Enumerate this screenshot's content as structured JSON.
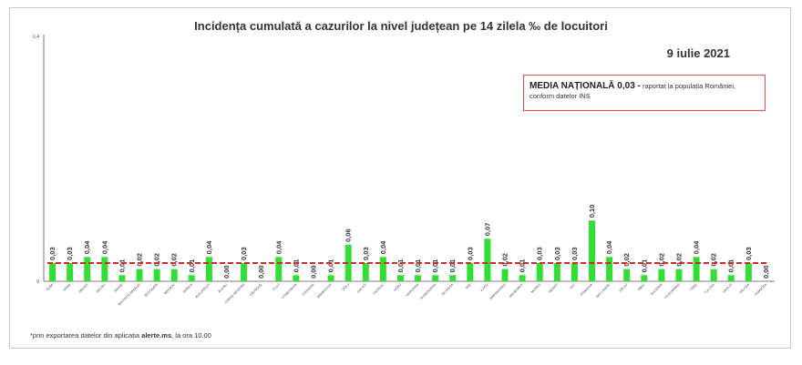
{
  "title": "Incidența cumulată a cazurilor la nivel județean pe 14 zilela ‰ de locuitori",
  "date": "9 iulie 2021",
  "media": {
    "bold": "MEDIA NAȚIONALĂ 0,03 -",
    "line1": " raportat la populația României,",
    "line2": "conform datelor INS"
  },
  "footnote": {
    "prefix": "*prin exportarea datelor din aplicația ",
    "app": "alerte.ms",
    "suffix": ", la ora 10.00"
  },
  "colors": {
    "bar": "#33dd33",
    "average_line": "#d62828",
    "axis": "#555555"
  },
  "chart_data": {
    "type": "bar",
    "title": "Incidența cumulată a cazurilor la nivel județean pe 14 zilela ‰ de locuitori",
    "ylim": [
      0,
      0.4
    ],
    "y_ticks": [
      "0,4",
      "0"
    ],
    "grid": false,
    "reference_line": {
      "value": 0.03
    },
    "categories": [
      "ALBA",
      "ARAD",
      "ARGEȘ",
      "BACĂU",
      "BIHOR",
      "BISTRIȚA-NĂSĂUD",
      "BOTOȘANI",
      "BRAȘOV",
      "BRĂILA",
      "BUCUREȘTI",
      "BUZĂU",
      "CARAȘ-SEVERIN",
      "CĂLĂRAȘI",
      "CLUJ",
      "CONSTANȚA",
      "COVASNA",
      "DÂMBOVIȚA",
      "DOLJ",
      "GALAȚI",
      "GIURGIU",
      "GORJ",
      "HARGHITA",
      "HUNEDOARA",
      "IALOMIȚA",
      "IAȘI",
      "ILFOV",
      "MARAMUREȘ",
      "MEHEDINȚI",
      "MUREȘ",
      "NEAMȚ",
      "OLT",
      "PRAHOVA",
      "SATU MARE",
      "SĂLAJ",
      "SIBIU",
      "SUCEAVA",
      "TELEORMAN",
      "TIMIȘ",
      "TULCEA",
      "VASLUI",
      "VÂLCEA",
      "VRANCEA"
    ],
    "values": [
      0.03,
      0.03,
      0.04,
      0.04,
      0.01,
      0.02,
      0.02,
      0.02,
      0.01,
      0.04,
      0.0,
      0.03,
      0.0,
      0.04,
      0.01,
      0.0,
      0.01,
      0.06,
      0.03,
      0.04,
      0.01,
      0.01,
      0.01,
      0.01,
      0.03,
      0.07,
      0.02,
      0.01,
      0.03,
      0.03,
      0.03,
      0.1,
      0.04,
      0.02,
      0.01,
      0.02,
      0.02,
      0.04,
      0.02,
      0.01,
      0.03,
      0.0
    ],
    "labels": [
      "0,03",
      "0,03",
      "0,04",
      "0,04",
      "0,01",
      "0,02",
      "0,02",
      "0,02",
      "0,01",
      "0,04",
      "0,00",
      "0,03",
      "0,00",
      "0,04",
      "0,01",
      "0,00",
      "0,01",
      "0,06",
      "0,03",
      "0,04",
      "0,01",
      "0,01",
      "0,01",
      "0,01",
      "0,03",
      "0,07",
      "0,02",
      "0,01",
      "0,03",
      "0,03",
      "0,03",
      "0,10",
      "0,04",
      "0,02",
      "0,01",
      "0,02",
      "0,02",
      "0,04",
      "0,02",
      "0,01",
      "0,03",
      "0,00"
    ]
  }
}
